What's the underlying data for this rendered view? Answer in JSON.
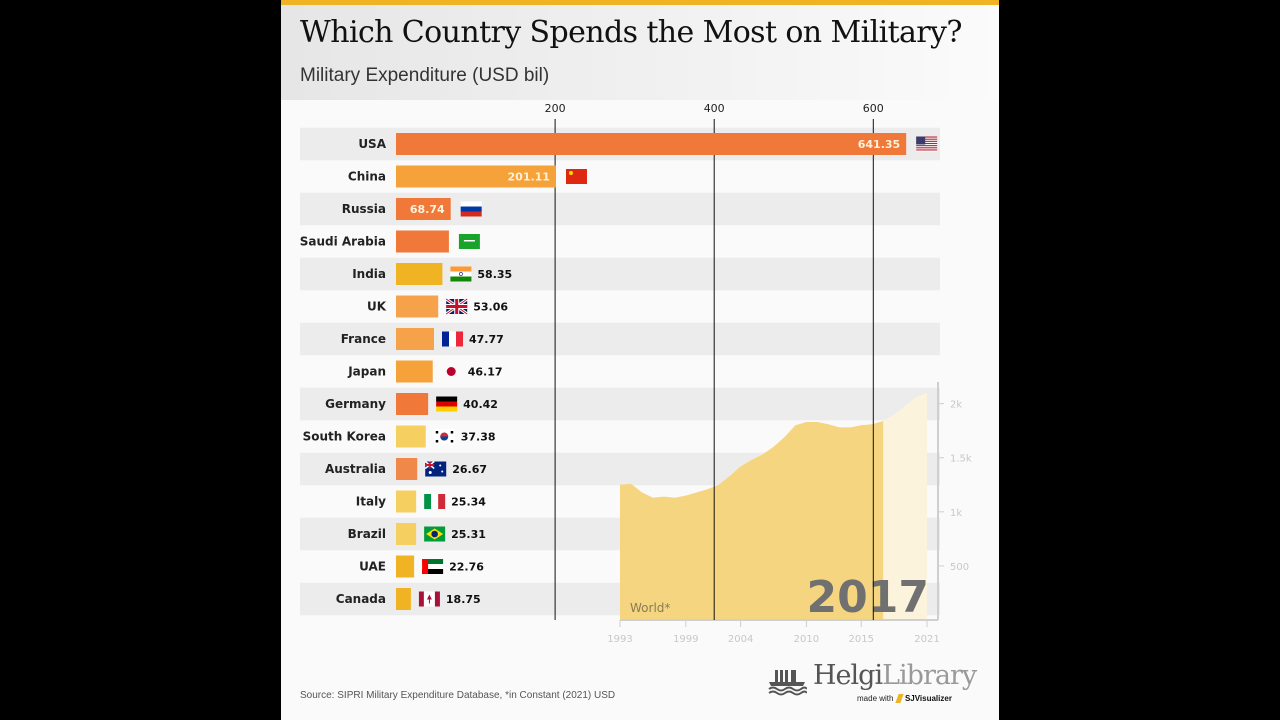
{
  "header": {
    "title": "Which Country Spends the Most on Military?",
    "subtitle": "Military Expenditure (USD bil)"
  },
  "footer": {
    "source": "Source: SIPRI Military Expenditure Database,  *in Constant (2021) USD",
    "logo_bold": "Helgi",
    "logo_light": "Library",
    "made_with_prefix": "made with",
    "made_with_brand": "SJVisualizer"
  },
  "colors": {
    "accent_bar": "#f0b323",
    "orange": "#f07838",
    "light_orange": "#f5a040",
    "mid_orange": "#f39a4c",
    "yellow": "#f2c95e",
    "gold": "#f0b323",
    "area_fill": "#f5d57f",
    "area_future": "#fcf3dc"
  },
  "chart_data": [
    {
      "type": "bar",
      "orientation": "horizontal",
      "title": "Which Country Spends the Most on Military?",
      "subtitle": "Military Expenditure (USD bil)",
      "xlabel": "",
      "ylabel": "",
      "xlim": [
        0,
        680
      ],
      "xticks": [
        200,
        400,
        600
      ],
      "grid": true,
      "year": "2017",
      "categories": [
        "USA",
        "China",
        "Russia",
        "Saudi Arabia",
        "India",
        "UK",
        "France",
        "Japan",
        "Germany",
        "South Korea",
        "Australia",
        "Italy",
        "Brazil",
        "UAE",
        "Canada"
      ],
      "values": [
        641.35,
        201.11,
        68.74,
        66.5,
        58.35,
        53.06,
        47.77,
        46.17,
        40.42,
        37.38,
        26.67,
        25.34,
        25.31,
        22.76,
        18.75
      ],
      "value_labels": [
        "641.35",
        "201.11",
        "68.74",
        "",
        "58.35",
        "53.06",
        "47.77",
        "46.17",
        "40.42",
        "37.38",
        "26.67",
        "25.34",
        "25.31",
        "22.76",
        "18.75"
      ],
      "flags": [
        "us-flag",
        "china-flag",
        "russia-flag",
        "saudi-flag",
        "india-flag",
        "uk-flag",
        "france-flag",
        "japan-flag",
        "germany-flag",
        "south-korea-flag",
        "australia-flag",
        "italy-flag",
        "brazil-flag",
        "uae-flag",
        "canada-flag"
      ],
      "bar_colors": [
        "#f07838",
        "#f5a23a",
        "#f07838",
        "#f07838",
        "#f0b323",
        "#f5a24a",
        "#f5a24a",
        "#f5a23a",
        "#f07838",
        "#f5d060",
        "#f0884a",
        "#f5d060",
        "#f5d060",
        "#f0b323",
        "#f0b323"
      ]
    },
    {
      "type": "area",
      "title": "World*",
      "x": [
        1993,
        1994,
        1995,
        1996,
        1997,
        1998,
        1999,
        2000,
        2001,
        2002,
        2003,
        2004,
        2005,
        2006,
        2007,
        2008,
        2009,
        2010,
        2011,
        2012,
        2013,
        2014,
        2015,
        2016,
        2017,
        2018,
        2019,
        2020,
        2021
      ],
      "y": [
        1250,
        1260,
        1180,
        1130,
        1140,
        1130,
        1150,
        1180,
        1210,
        1250,
        1330,
        1420,
        1480,
        1530,
        1600,
        1690,
        1800,
        1830,
        1830,
        1810,
        1780,
        1780,
        1800,
        1810,
        1840,
        1900,
        1980,
        2060,
        2100
      ],
      "current_year": 2017,
      "xticks": [
        1993,
        1999,
        2004,
        2010,
        2015,
        2021
      ],
      "yticks": [
        500,
        1000,
        1500,
        2000
      ],
      "ytick_labels": [
        "500",
        "1k",
        "1.5k",
        "2k"
      ],
      "ylim": [
        0,
        2200
      ],
      "xlim": [
        1993,
        2022
      ]
    }
  ]
}
